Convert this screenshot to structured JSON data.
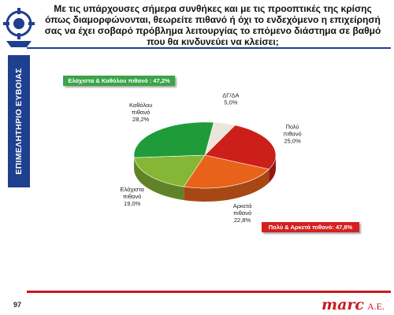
{
  "title": "Με τις υπάρχουσες σήμερα συνθήκες και με τις προοπτικές της κρίσης όπως διαμορφώνονται, θεωρείτε πιθανό ή όχι το ενδεχόμενο η επιχείρησή σας να έχει σοβαρό πρόβλημα λειτουργίας το επόμενο διάστημα σε βαθμό που θα κινδυνεύει να κλείσει;",
  "sidebar": {
    "org_name": "ΕΠΙΜΕΛΗΤΗΡΙΟ ΕΥΒΟΙΑΣ"
  },
  "callouts": {
    "unlikely_total": "Ελάχιστα & Καθόλου πιθανό : 47,2%",
    "likely_total": "Πολύ & Αρκετά πιθανό: 47,8%"
  },
  "footer": {
    "page_number": "97",
    "brand": "marc",
    "brand_suffix": "A.E."
  },
  "colors": {
    "brand_red": "#c9181f",
    "brand_blue": "#1f3f8f",
    "callout_green": "#3aa447",
    "callout_red": "#d42020"
  },
  "chart_data": {
    "type": "pie",
    "style": "3d",
    "slices": [
      {
        "label": "ΔΓ/ΔΑ",
        "value": 5.0,
        "display": "5,0%",
        "color": "#ece6da"
      },
      {
        "label": "Πολύ πιθανό",
        "value": 25.0,
        "display": "25,0%",
        "color": "#cc1f1a"
      },
      {
        "label": "Αρκετά πιθανό",
        "value": 22.8,
        "display": "22,8%",
        "color": "#e8621a"
      },
      {
        "label": "Ελάχιστα πιθανό",
        "value": 19.0,
        "display": "19,0%",
        "color": "#86b636"
      },
      {
        "label": "Καθόλου πιθανό",
        "value": 28.2,
        "display": "28,2%",
        "color": "#1f9b3a"
      }
    ]
  }
}
